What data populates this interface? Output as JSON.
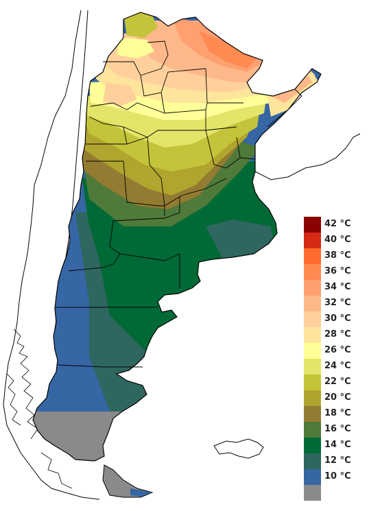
{
  "legend": {
    "entries": [
      {
        "label": "42 °C",
        "color": "#8b0000"
      },
      {
        "label": "40 °C",
        "color": "#d42a14"
      },
      {
        "label": "38 °C",
        "color": "#ff6a2e"
      },
      {
        "label": "36 °C",
        "color": "#ff8a52"
      },
      {
        "label": "34 °C",
        "color": "#ffa070"
      },
      {
        "label": "32 °C",
        "color": "#ffb889"
      },
      {
        "label": "30 °C",
        "color": "#ffd09c"
      },
      {
        "label": "28 °C",
        "color": "#ffe59c"
      },
      {
        "label": "26 °C",
        "color": "#ffff99"
      },
      {
        "label": "24 °C",
        "color": "#e3e56a"
      },
      {
        "label": "22 °C",
        "color": "#c3c43a"
      },
      {
        "label": "20 °C",
        "color": "#b0a52e"
      },
      {
        "label": "18 °C",
        "color": "#937b32"
      },
      {
        "label": "16 °C",
        "color": "#4f7a3a"
      },
      {
        "label": "14 °C",
        "color": "#006a36"
      },
      {
        "label": "12 °C",
        "color": "#2f6660"
      },
      {
        "label": "10 °C",
        "color": "#3766a4"
      },
      {
        "label": "",
        "color": "#8a8a8a"
      }
    ]
  },
  "map": {
    "colors": {
      "outline": "#000000",
      "background": "#ffffff"
    }
  }
}
